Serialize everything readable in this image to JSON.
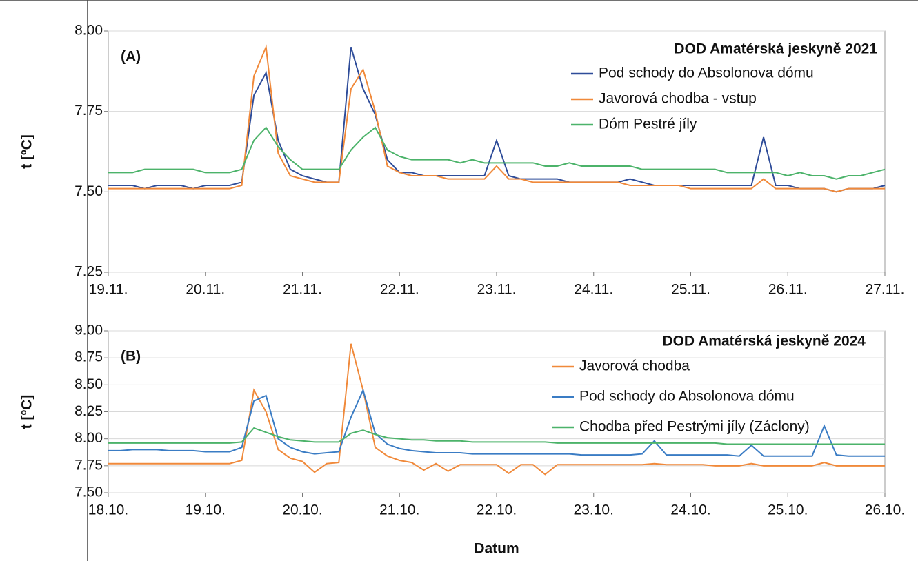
{
  "chart_data": [
    {
      "type": "line",
      "annotation": "(A)",
      "legend_title": "DOD Amatérská jeskyně 2021",
      "ylabel": "t [ºC]",
      "legend": "upper right",
      "grid": true,
      "xlim": [
        19,
        27
      ],
      "xticks": [
        {
          "value": 19,
          "label": "19.11."
        },
        {
          "value": 20,
          "label": "20.11."
        },
        {
          "value": 21,
          "label": "21.11."
        },
        {
          "value": 22,
          "label": "22.11."
        },
        {
          "value": 23,
          "label": "23.11."
        },
        {
          "value": 24,
          "label": "24.11."
        },
        {
          "value": 25,
          "label": "25.11."
        },
        {
          "value": 26,
          "label": "26.11."
        },
        {
          "value": 27,
          "label": "27.11."
        }
      ],
      "ylim": [
        7.25,
        8
      ],
      "yticks": [
        7.25,
        {
          "value": 7.5,
          "label": "7.50"
        },
        7.75,
        {
          "value": 8,
          "label": "8.00"
        }
      ],
      "x": [
        19,
        19.125,
        19.25,
        19.375,
        19.5,
        19.625,
        19.75,
        19.875,
        20,
        20.125,
        20.25,
        20.375,
        20.5,
        20.625,
        20.75,
        20.875,
        21,
        21.125,
        21.25,
        21.375,
        21.5,
        21.625,
        21.75,
        21.875,
        22,
        22.125,
        22.25,
        22.375,
        22.5,
        22.625,
        22.75,
        22.875,
        23,
        23.125,
        23.25,
        23.375,
        23.5,
        23.625,
        23.75,
        23.875,
        24,
        24.125,
        24.25,
        24.375,
        24.5,
        24.625,
        24.75,
        24.875,
        25,
        25.125,
        25.25,
        25.375,
        25.5,
        25.625,
        25.75,
        25.875,
        26,
        26.125,
        26.25,
        26.375,
        26.5,
        26.625,
        26.75,
        26.875,
        27
      ],
      "series": [
        {
          "name": "Pod schody do Absolonova dómu",
          "color": "#2e4c99",
          "values": [
            7.52,
            7.52,
            7.52,
            7.51,
            7.52,
            7.52,
            7.52,
            7.51,
            7.52,
            7.52,
            7.52,
            7.53,
            7.8,
            7.87,
            7.66,
            7.57,
            7.55,
            7.54,
            7.53,
            7.53,
            7.95,
            7.82,
            7.74,
            7.6,
            7.56,
            7.56,
            7.55,
            7.55,
            7.55,
            7.55,
            7.55,
            7.55,
            7.66,
            7.55,
            7.54,
            7.54,
            7.54,
            7.54,
            7.53,
            7.53,
            7.53,
            7.53,
            7.53,
            7.54,
            7.53,
            7.52,
            7.52,
            7.52,
            7.52,
            7.52,
            7.52,
            7.52,
            7.52,
            7.52,
            7.67,
            7.52,
            7.52,
            7.51,
            7.51,
            7.51,
            7.5,
            7.51,
            7.51,
            7.51,
            7.52
          ]
        },
        {
          "name": "Javorová chodba - vstup",
          "color": "#f0893a",
          "values": [
            7.51,
            7.51,
            7.51,
            7.51,
            7.51,
            7.51,
            7.51,
            7.51,
            7.51,
            7.51,
            7.51,
            7.52,
            7.86,
            7.95,
            7.62,
            7.55,
            7.54,
            7.53,
            7.53,
            7.53,
            7.82,
            7.88,
            7.75,
            7.58,
            7.56,
            7.55,
            7.55,
            7.55,
            7.54,
            7.54,
            7.54,
            7.54,
            7.58,
            7.54,
            7.54,
            7.53,
            7.53,
            7.53,
            7.53,
            7.53,
            7.53,
            7.53,
            7.53,
            7.52,
            7.52,
            7.52,
            7.52,
            7.52,
            7.51,
            7.51,
            7.51,
            7.51,
            7.51,
            7.51,
            7.54,
            7.51,
            7.51,
            7.51,
            7.51,
            7.51,
            7.5,
            7.51,
            7.51,
            7.51,
            7.51
          ]
        },
        {
          "name": "Dóm Pestré jíly",
          "color": "#4cb36a",
          "values": [
            7.56,
            7.56,
            7.56,
            7.57,
            7.57,
            7.57,
            7.57,
            7.57,
            7.56,
            7.56,
            7.56,
            7.57,
            7.66,
            7.7,
            7.64,
            7.6,
            7.57,
            7.57,
            7.57,
            7.57,
            7.63,
            7.67,
            7.7,
            7.63,
            7.61,
            7.6,
            7.6,
            7.6,
            7.6,
            7.59,
            7.6,
            7.59,
            7.59,
            7.59,
            7.59,
            7.59,
            7.58,
            7.58,
            7.59,
            7.58,
            7.58,
            7.58,
            7.58,
            7.58,
            7.57,
            7.57,
            7.57,
            7.57,
            7.57,
            7.57,
            7.57,
            7.56,
            7.56,
            7.56,
            7.56,
            7.56,
            7.55,
            7.56,
            7.55,
            7.55,
            7.54,
            7.55,
            7.55,
            7.56,
            7.57
          ]
        }
      ]
    },
    {
      "type": "line",
      "annotation": "(B)",
      "legend_title": "DOD Amatérská jeskyně 2024",
      "ylabel": "t [ºC]",
      "xlabel": "Datum",
      "legend": "upper right",
      "grid": true,
      "xlim": [
        18,
        26
      ],
      "xticks": [
        {
          "value": 18,
          "label": "18.10."
        },
        {
          "value": 19,
          "label": "19.10."
        },
        {
          "value": 20,
          "label": "20.10."
        },
        {
          "value": 21,
          "label": "21.10."
        },
        {
          "value": 22,
          "label": "22.10."
        },
        {
          "value": 23,
          "label": "23.10."
        },
        {
          "value": 24,
          "label": "24.10."
        },
        {
          "value": 25,
          "label": "25.10."
        },
        {
          "value": 26,
          "label": "26.10."
        }
      ],
      "ylim": [
        7.5,
        9
      ],
      "yticks": [
        {
          "value": 7.5,
          "label": "7.50"
        },
        7.75,
        {
          "value": 8,
          "label": "8.00"
        },
        8.25,
        {
          "value": 8.5,
          "label": "8.50"
        },
        8.75,
        {
          "value": 9,
          "label": "9.00"
        }
      ],
      "x": [
        18,
        18.125,
        18.25,
        18.375,
        18.5,
        18.625,
        18.75,
        18.875,
        19,
        19.125,
        19.25,
        19.375,
        19.5,
        19.625,
        19.75,
        19.875,
        20,
        20.125,
        20.25,
        20.375,
        20.5,
        20.625,
        20.75,
        20.875,
        21,
        21.125,
        21.25,
        21.375,
        21.5,
        21.625,
        21.75,
        21.875,
        22,
        22.125,
        22.25,
        22.375,
        22.5,
        22.625,
        22.75,
        22.875,
        23,
        23.125,
        23.25,
        23.375,
        23.5,
        23.625,
        23.75,
        23.875,
        24,
        24.125,
        24.25,
        24.375,
        24.5,
        24.625,
        24.75,
        24.875,
        25,
        25.125,
        25.25,
        25.375,
        25.5,
        25.625,
        25.75,
        25.875,
        26
      ],
      "series": [
        {
          "name": "Javorová chodba",
          "color": "#f0893a",
          "values": [
            7.77,
            7.77,
            7.77,
            7.77,
            7.77,
            7.77,
            7.77,
            7.77,
            7.77,
            7.77,
            7.77,
            7.8,
            8.45,
            8.25,
            7.9,
            7.82,
            7.79,
            7.69,
            7.77,
            7.78,
            8.88,
            8.45,
            7.92,
            7.84,
            7.8,
            7.78,
            7.71,
            7.77,
            7.7,
            7.76,
            7.76,
            7.76,
            7.76,
            7.68,
            7.76,
            7.76,
            7.67,
            7.76,
            7.76,
            7.76,
            7.76,
            7.76,
            7.76,
            7.76,
            7.76,
            7.77,
            7.76,
            7.76,
            7.76,
            7.76,
            7.75,
            7.75,
            7.75,
            7.77,
            7.75,
            7.75,
            7.75,
            7.75,
            7.75,
            7.78,
            7.75,
            7.75,
            7.75,
            7.75,
            7.75
          ]
        },
        {
          "name": "Pod schody do Absolonova dómu",
          "color": "#3a7cc4",
          "values": [
            7.89,
            7.89,
            7.9,
            7.9,
            7.9,
            7.89,
            7.89,
            7.89,
            7.88,
            7.88,
            7.88,
            7.92,
            8.35,
            8.4,
            8.0,
            7.92,
            7.88,
            7.86,
            7.87,
            7.88,
            8.2,
            8.45,
            8.05,
            7.95,
            7.91,
            7.89,
            7.88,
            7.87,
            7.87,
            7.87,
            7.86,
            7.86,
            7.86,
            7.86,
            7.86,
            7.86,
            7.86,
            7.86,
            7.86,
            7.85,
            7.85,
            7.85,
            7.85,
            7.85,
            7.86,
            7.98,
            7.85,
            7.85,
            7.85,
            7.85,
            7.85,
            7.85,
            7.84,
            7.94,
            7.84,
            7.84,
            7.84,
            7.84,
            7.84,
            8.12,
            7.85,
            7.84,
            7.84,
            7.84,
            7.84
          ]
        },
        {
          "name": "Chodba před Pestrými jíly (Záclony)",
          "color": "#4cb36a",
          "values": [
            7.96,
            7.96,
            7.96,
            7.96,
            7.96,
            7.96,
            7.96,
            7.96,
            7.96,
            7.96,
            7.96,
            7.97,
            8.1,
            8.06,
            8.02,
            7.99,
            7.98,
            7.97,
            7.97,
            7.97,
            8.05,
            8.08,
            8.04,
            8.01,
            8.0,
            7.99,
            7.99,
            7.98,
            7.98,
            7.98,
            7.97,
            7.97,
            7.97,
            7.97,
            7.97,
            7.97,
            7.97,
            7.96,
            7.96,
            7.96,
            7.96,
            7.96,
            7.96,
            7.96,
            7.96,
            7.96,
            7.96,
            7.96,
            7.96,
            7.96,
            7.96,
            7.95,
            7.95,
            7.95,
            7.95,
            7.95,
            7.95,
            7.95,
            7.95,
            7.95,
            7.95,
            7.95,
            7.95,
            7.95,
            7.95
          ]
        }
      ]
    }
  ]
}
